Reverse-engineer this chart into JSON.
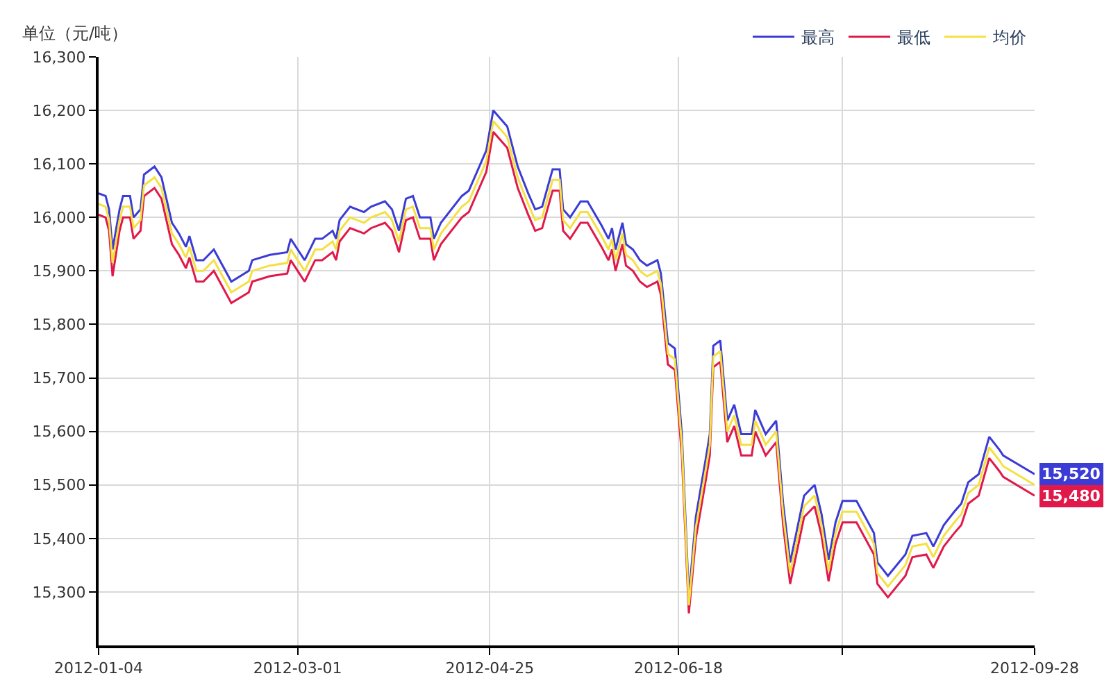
{
  "chart_data": {
    "type": "line",
    "ylabel": "单位（元/吨）",
    "x": [
      "2012-01-04",
      "2012-01-06",
      "2012-01-07",
      "2012-01-08",
      "2012-01-10",
      "2012-01-11",
      "2012-01-13",
      "2012-01-14",
      "2012-01-16",
      "2012-01-17",
      "2012-01-20",
      "2012-01-22",
      "2012-01-25",
      "2012-01-27",
      "2012-01-29",
      "2012-01-30",
      "2012-02-01",
      "2012-02-03",
      "2012-02-06",
      "2012-02-11",
      "2012-02-16",
      "2012-02-17",
      "2012-02-22",
      "2012-02-27",
      "2012-02-28",
      "2012-03-01",
      "2012-03-03",
      "2012-03-06",
      "2012-03-08",
      "2012-03-11",
      "2012-03-12",
      "2012-03-13",
      "2012-03-16",
      "2012-03-20",
      "2012-03-22",
      "2012-03-26",
      "2012-03-28",
      "2012-03-30",
      "2012-04-01",
      "2012-04-03",
      "2012-04-05",
      "2012-04-08",
      "2012-04-09",
      "2012-04-11",
      "2012-04-17",
      "2012-04-19",
      "2012-04-21",
      "2012-04-24",
      "2012-04-26",
      "2012-04-28",
      "2012-04-30",
      "2012-05-03",
      "2012-05-06",
      "2012-05-08",
      "2012-05-10",
      "2012-05-13",
      "2012-05-15",
      "2012-05-16",
      "2012-05-18",
      "2012-05-21",
      "2012-05-23",
      "2012-05-27",
      "2012-05-29",
      "2012-05-30",
      "2012-05-31",
      "2012-06-02",
      "2012-06-03",
      "2012-06-05",
      "2012-06-07",
      "2012-06-09",
      "2012-06-12",
      "2012-06-13",
      "2012-06-15",
      "2012-06-17",
      "2012-06-19",
      "2012-06-21",
      "2012-06-23",
      "2012-06-26",
      "2012-06-27",
      "2012-06-28",
      "2012-06-30",
      "2012-07-02",
      "2012-07-04",
      "2012-07-06",
      "2012-07-09",
      "2012-07-10",
      "2012-07-13",
      "2012-07-16",
      "2012-07-18",
      "2012-07-20",
      "2012-07-24",
      "2012-07-27",
      "2012-07-29",
      "2012-07-31",
      "2012-08-02",
      "2012-08-04",
      "2012-08-08",
      "2012-08-13",
      "2012-08-14",
      "2012-08-17",
      "2012-08-22",
      "2012-08-24",
      "2012-08-28",
      "2012-08-30",
      "2012-09-02",
      "2012-09-05",
      "2012-09-07",
      "2012-09-09",
      "2012-09-12",
      "2012-09-15",
      "2012-09-18",
      "2012-09-19",
      "2012-09-28"
    ],
    "series": [
      {
        "name": "最高",
        "color": "#3b3bd6",
        "values": [
          16045,
          16040,
          16015,
          15940,
          16015,
          16040,
          16040,
          16000,
          16015,
          16080,
          16095,
          16075,
          15990,
          15970,
          15945,
          15965,
          15920,
          15920,
          15940,
          15880,
          15900,
          15920,
          15930,
          15935,
          15960,
          15940,
          15920,
          15960,
          15960,
          15975,
          15960,
          15995,
          16020,
          16010,
          16020,
          16030,
          16015,
          15975,
          16035,
          16040,
          16000,
          16000,
          15960,
          15990,
          16040,
          16050,
          16080,
          16125,
          16200,
          16185,
          16170,
          16095,
          16045,
          16015,
          16020,
          16090,
          16090,
          16015,
          16000,
          16030,
          16030,
          15985,
          15960,
          15980,
          15940,
          15990,
          15950,
          15940,
          15920,
          15910,
          15920,
          15895,
          15765,
          15755,
          15595,
          15290,
          15440,
          15555,
          15595,
          15760,
          15770,
          15620,
          15650,
          15595,
          15595,
          15640,
          15595,
          15620,
          15465,
          15355,
          15480,
          15500,
          15445,
          15360,
          15430,
          15470,
          15470,
          15410,
          15355,
          15330,
          15370,
          15405,
          15410,
          15385,
          15425,
          15450,
          15465,
          15505,
          15520,
          15590,
          15565,
          15555,
          15520
        ]
      },
      {
        "name": "最低",
        "color": "#e0194a",
        "values": [
          16005,
          16000,
          15975,
          15890,
          15975,
          16000,
          16000,
          15960,
          15975,
          16040,
          16055,
          16035,
          15950,
          15930,
          15905,
          15925,
          15880,
          15880,
          15900,
          15840,
          15860,
          15880,
          15890,
          15895,
          15920,
          15900,
          15880,
          15920,
          15920,
          15935,
          15920,
          15955,
          15980,
          15970,
          15980,
          15990,
          15975,
          15935,
          15995,
          16000,
          15960,
          15960,
          15920,
          15950,
          16000,
          16010,
          16040,
          16085,
          16160,
          16145,
          16130,
          16055,
          16005,
          15975,
          15980,
          16050,
          16050,
          15975,
          15960,
          15990,
          15990,
          15945,
          15920,
          15940,
          15900,
          15950,
          15910,
          15900,
          15880,
          15870,
          15880,
          15855,
          15725,
          15715,
          15555,
          15260,
          15400,
          15515,
          15555,
          15720,
          15730,
          15580,
          15610,
          15555,
          15555,
          15600,
          15555,
          15580,
          15425,
          15315,
          15440,
          15460,
          15405,
          15320,
          15390,
          15430,
          15430,
          15370,
          15315,
          15290,
          15330,
          15365,
          15370,
          15345,
          15385,
          15410,
          15425,
          15465,
          15480,
          15550,
          15525,
          15515,
          15480
        ]
      },
      {
        "name": "均价",
        "color": "#f5e042",
        "values": [
          16025,
          16020,
          15995,
          15915,
          15995,
          16020,
          16020,
          15980,
          15995,
          16060,
          16075,
          16055,
          15970,
          15950,
          15925,
          15945,
          15900,
          15900,
          15920,
          15860,
          15880,
          15900,
          15910,
          15915,
          15940,
          15920,
          15900,
          15940,
          15940,
          15955,
          15940,
          15975,
          16000,
          15990,
          16000,
          16010,
          15995,
          15955,
          16015,
          16020,
          15980,
          15980,
          15940,
          15970,
          16020,
          16030,
          16060,
          16105,
          16180,
          16165,
          16150,
          16075,
          16025,
          15995,
          16000,
          16070,
          16070,
          15995,
          15980,
          16010,
          16010,
          15965,
          15940,
          15960,
          15920,
          15970,
          15930,
          15920,
          15900,
          15890,
          15900,
          15875,
          15745,
          15735,
          15575,
          15275,
          15420,
          15535,
          15575,
          15740,
          15750,
          15600,
          15630,
          15575,
          15575,
          15620,
          15575,
          15600,
          15445,
          15335,
          15460,
          15480,
          15425,
          15340,
          15410,
          15450,
          15450,
          15390,
          15335,
          15310,
          15350,
          15385,
          15390,
          15365,
          15405,
          15430,
          15445,
          15485,
          15500,
          15570,
          15545,
          15535,
          15500
        ]
      }
    ],
    "xlim": [
      "2012-01-04",
      "2012-09-28"
    ],
    "xticks": [
      "2012-01-04",
      "2012-03-01",
      "2012-04-25",
      "2012-06-18",
      {
        "value": "2012-08-04",
        "label": null
      },
      "2012-09-28"
    ],
    "ylim": [
      15200,
      16300
    ],
    "yticks": [
      {
        "value": 15300,
        "label": "15,300"
      },
      {
        "value": 15400,
        "label": "15,400"
      },
      {
        "value": 15500,
        "label": "15,500"
      },
      {
        "value": 15600,
        "label": "15,600"
      },
      {
        "value": 15700,
        "label": "15,700"
      },
      {
        "value": 15800,
        "label": "15,800"
      },
      {
        "value": 15900,
        "label": "15,900"
      },
      {
        "value": 16000,
        "label": "16,000"
      },
      {
        "value": 16100,
        "label": "16,100"
      },
      {
        "value": 16200,
        "label": "16,200"
      },
      {
        "value": 16300,
        "label": "16,300"
      }
    ],
    "annotations": [
      {
        "text": "15,520",
        "x": "2012-09-28",
        "y": 15520
      },
      {
        "text": "15,480",
        "x": "2012-09-28",
        "y": 15480
      }
    ],
    "grid": true,
    "legend": "top right",
    "marker": "none",
    "line_style": "solid"
  }
}
